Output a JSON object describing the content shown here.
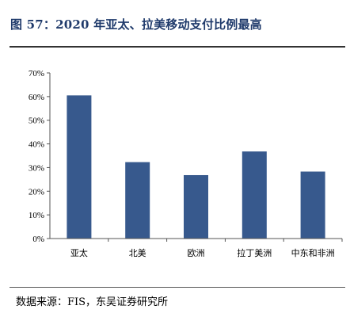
{
  "figure": {
    "title": "图 57：2020 年亚太、拉美移动支付比例最高",
    "source": "数据来源：FIS，东吴证券研究所"
  },
  "colors": {
    "bar": "#37598d",
    "axis": "#555555",
    "title": "#1f3a6b"
  },
  "chart_data": {
    "type": "bar",
    "categories": [
      "亚太",
      "北美",
      "欧洲",
      "拉丁美洲",
      "中东和非洲"
    ],
    "values": [
      60.5,
      32.3,
      26.8,
      36.8,
      28.3
    ],
    "value_unit": "%",
    "ylim": [
      0,
      70
    ],
    "yticks": [
      "0%",
      "10%",
      "20%",
      "30%",
      "40%",
      "50%",
      "60%",
      "70%"
    ],
    "grid": false,
    "legend": "none"
  }
}
